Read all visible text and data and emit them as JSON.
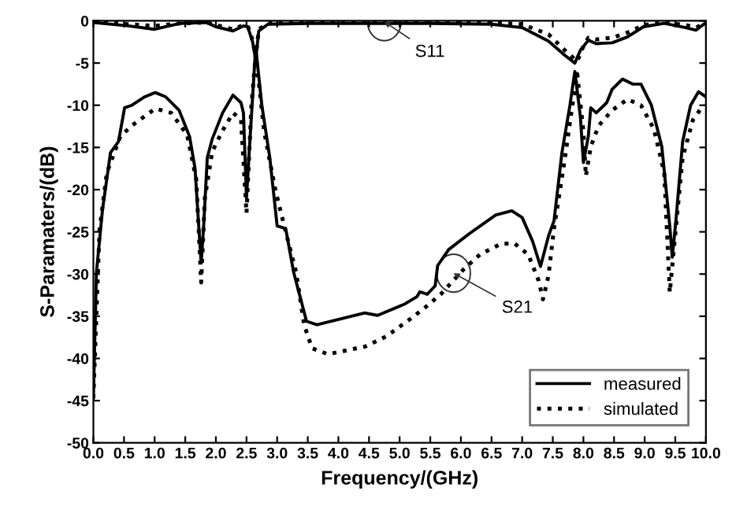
{
  "chart_data": {
    "type": "line",
    "xlabel": "Frequency/(GHz)",
    "ylabel": "S-Paramaters/(dB)",
    "xlim": [
      0,
      10
    ],
    "ylim": [
      -50,
      0
    ],
    "xticks": [
      {
        "value": 0,
        "label": "0.0"
      },
      {
        "value": 0.5,
        "label": "0.5"
      },
      {
        "value": 1,
        "label": "1.0"
      },
      {
        "value": 1.5,
        "label": "1.5"
      },
      {
        "value": 2,
        "label": "2.0"
      },
      {
        "value": 2.5,
        "label": "2.5"
      },
      {
        "value": 3,
        "label": "3.0"
      },
      {
        "value": 3.5,
        "label": "3.5"
      },
      {
        "value": 4,
        "label": "4.0"
      },
      {
        "value": 4.5,
        "label": "4.5"
      },
      {
        "value": 5,
        "label": "5.0"
      },
      {
        "value": 5.5,
        "label": "5.5"
      },
      {
        "value": 6,
        "label": "6.0"
      },
      {
        "value": 6.5,
        "label": "6.5"
      },
      {
        "value": 7,
        "label": "7.0"
      },
      {
        "value": 7.5,
        "label": "7.5"
      },
      {
        "value": 8,
        "label": "8.0"
      },
      {
        "value": 8.5,
        "label": "8.5"
      },
      {
        "value": 9,
        "label": "9.0"
      },
      {
        "value": 9.5,
        "label": "9.5"
      },
      {
        "value": 10,
        "label": "10.0"
      }
    ],
    "yticks": [
      -50,
      -45,
      -40,
      -35,
      -30,
      -25,
      -20,
      -15,
      -10,
      -5,
      0
    ],
    "grid": false,
    "legend": "bottom right",
    "annotations": [
      {
        "text": "S11",
        "x": 4.75,
        "y": -0.1
      },
      {
        "text": "S21",
        "x": 5.88,
        "y": -29.9
      }
    ],
    "series": [
      {
        "name": "measured",
        "color": "#000000",
        "line_style": "solid",
        "x": [
          0,
          0.57,
          1.0,
          1.42,
          1.85,
          2.0,
          2.28,
          2.45,
          2.52,
          2.6,
          2.65,
          2.7,
          2.85,
          3.5,
          4.5,
          5.5,
          6.5,
          7.0,
          7.43,
          7.7,
          7.86,
          7.95,
          8.08,
          8.21,
          8.47,
          8.72,
          8.98,
          9.32,
          9.67,
          9.84,
          10
        ],
        "values": [
          -0.2,
          -0.6,
          -1.0,
          -0.3,
          -0.2,
          -0.7,
          -1.2,
          -0.6,
          -0.7,
          -2.5,
          -4.6,
          -1.2,
          -0.4,
          -0.3,
          -0.3,
          -0.3,
          -0.4,
          -0.8,
          -2.4,
          -4.1,
          -5.0,
          -3.5,
          -2.3,
          -2.7,
          -2.6,
          -1.9,
          -0.7,
          -0.3,
          -0.8,
          -1.1,
          -0.2
        ]
      },
      {
        "color": "#000000",
        "line_style": "solid",
        "x": [
          0,
          0.05,
          0.15,
          0.28,
          0.41,
          0.51,
          0.63,
          0.84,
          1.01,
          1.18,
          1.4,
          1.57,
          1.66,
          1.72,
          1.76,
          1.8,
          1.86,
          1.94,
          2.11,
          2.28,
          2.41,
          2.45,
          2.5,
          2.54,
          2.65,
          2.75,
          2.88,
          3.0,
          3.14,
          3.27,
          3.48,
          3.65,
          4.43,
          4.64,
          5.07,
          5.28,
          5.33,
          5.45,
          5.58,
          5.62,
          5.8,
          6.14,
          6.57,
          6.83,
          7.0,
          7.17,
          7.3,
          7.43,
          7.52,
          7.65,
          7.78,
          7.86,
          7.95,
          8.0,
          8.08,
          8.12,
          8.21,
          8.38,
          8.47,
          8.64,
          8.81,
          8.94,
          9.11,
          9.28,
          9.41,
          9.45,
          9.51,
          9.62,
          9.75,
          9.88,
          10
        ],
        "values": [
          -44.7,
          -29.8,
          -22.3,
          -15.6,
          -14.3,
          -10.3,
          -10.0,
          -9.0,
          -8.5,
          -9.0,
          -10.6,
          -13.7,
          -17.5,
          -24.3,
          -28.7,
          -24.3,
          -16.2,
          -14.0,
          -10.9,
          -8.8,
          -9.7,
          -10.9,
          -21.0,
          -16.0,
          -3.1,
          -10.0,
          -16.2,
          -24.3,
          -24.6,
          -29.8,
          -35.6,
          -36.0,
          -34.6,
          -34.9,
          -33.6,
          -32.7,
          -32.1,
          -32.4,
          -31.4,
          -29.0,
          -27.1,
          -25.2,
          -23.0,
          -22.5,
          -23.3,
          -26.1,
          -29.1,
          -25.5,
          -23.7,
          -15.6,
          -10.0,
          -6.0,
          -11.3,
          -16.8,
          -13.7,
          -10.3,
          -10.9,
          -9.7,
          -8.1,
          -6.9,
          -7.5,
          -7.5,
          -10.0,
          -14.9,
          -24.3,
          -28.0,
          -23.7,
          -14.3,
          -10.0,
          -8.4,
          -9.0
        ]
      },
      {
        "name": "simulated",
        "color": "#000000",
        "line_style": "dotted",
        "x": [
          0,
          0.57,
          1.0,
          1.42,
          1.85,
          2.0,
          2.28,
          2.45,
          2.52,
          2.6,
          2.65,
          2.7,
          2.85,
          3.5,
          4.5,
          5.5,
          6.5,
          7.0,
          7.43,
          7.7,
          7.9,
          8.0,
          8.08,
          8.21,
          8.47,
          8.72,
          8.98,
          9.32,
          9.67,
          9.84,
          10
        ],
        "values": [
          -0.1,
          -0.4,
          -0.6,
          -0.3,
          -0.2,
          -0.5,
          -1.0,
          -0.5,
          -0.6,
          -2.3,
          -4.4,
          -1.0,
          -0.3,
          -0.2,
          -0.2,
          -0.2,
          -0.2,
          -0.4,
          -1.6,
          -3.5,
          -4.8,
          -3.0,
          -2.0,
          -2.2,
          -2.0,
          -1.4,
          -0.5,
          -0.2,
          -0.5,
          -0.8,
          -0.2
        ]
      },
      {
        "color": "#000000",
        "line_style": "dotted",
        "x": [
          0,
          0.1,
          0.22,
          0.44,
          0.63,
          1.01,
          1.27,
          1.53,
          1.68,
          1.76,
          1.82,
          1.94,
          2.11,
          2.28,
          2.41,
          2.5,
          2.58,
          2.65,
          2.79,
          2.97,
          3.14,
          3.31,
          3.44,
          3.57,
          3.83,
          4.43,
          4.78,
          5.14,
          5.41,
          5.67,
          6.05,
          6.31,
          6.66,
          6.88,
          7.1,
          7.27,
          7.34,
          7.43,
          7.52,
          7.7,
          7.82,
          7.9,
          8.0,
          8.04,
          8.12,
          8.25,
          8.47,
          8.72,
          8.94,
          9.15,
          9.32,
          9.41,
          9.49,
          9.62,
          9.79,
          9.92,
          10
        ],
        "values": [
          -44.7,
          -24.8,
          -18.0,
          -13.7,
          -12.4,
          -10.4,
          -10.9,
          -13.5,
          -18.8,
          -31.0,
          -21.0,
          -15.5,
          -13.0,
          -10.9,
          -11.7,
          -22.8,
          -10.0,
          -4.0,
          -13.2,
          -20.0,
          -25.0,
          -29.8,
          -36.0,
          -38.8,
          -39.5,
          -38.6,
          -37.4,
          -35.5,
          -34.0,
          -32.4,
          -29.4,
          -27.7,
          -26.4,
          -26.4,
          -27.7,
          -30.8,
          -33.0,
          -30.2,
          -24.6,
          -16.2,
          -10.0,
          -6.3,
          -13.1,
          -18.4,
          -14.9,
          -12.4,
          -10.6,
          -9.3,
          -10.0,
          -12.8,
          -18.0,
          -32.2,
          -26.0,
          -16.2,
          -11.7,
          -10.4,
          -10.4
        ]
      }
    ]
  }
}
